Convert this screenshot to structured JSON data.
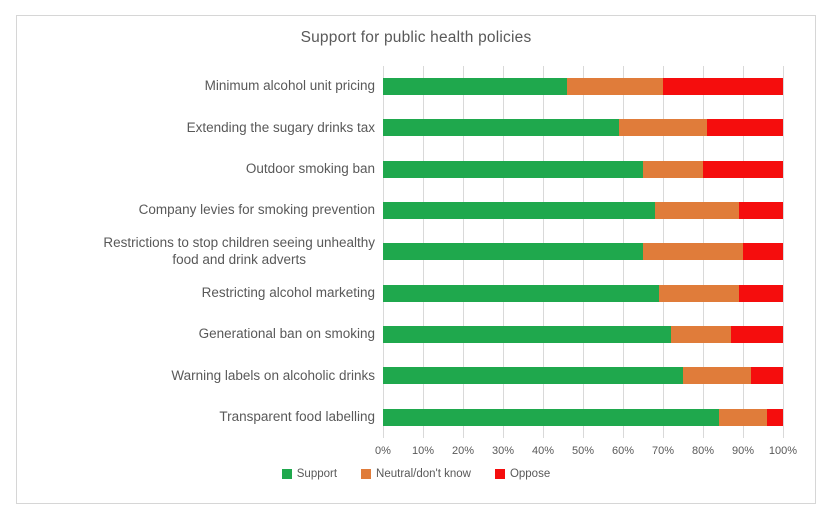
{
  "chart_data": {
    "type": "bar",
    "orientation": "horizontal",
    "stacked": true,
    "stack_total": 100,
    "title": "Support for public health policies",
    "categories": [
      "Minimum alcohol unit pricing",
      "Extending the sugary drinks tax",
      "Outdoor smoking ban",
      "Company levies for smoking prevention",
      "Restrictions to stop children seeing unhealthy\nfood and drink adverts",
      "Restricting alcohol marketing",
      "Generational ban on smoking",
      "Warning labels on alcoholic drinks",
      "Transparent food labelling"
    ],
    "series": [
      {
        "name": "Support",
        "color": "#1fa84d",
        "values": [
          46,
          59,
          65,
          68,
          65,
          69,
          72,
          75,
          84
        ]
      },
      {
        "name": "Neutral/don't know",
        "color": "#e07c3a",
        "values": [
          24,
          22,
          15,
          21,
          25,
          20,
          15,
          17,
          12
        ]
      },
      {
        "name": "Oppose",
        "color": "#f50d0d",
        "values": [
          30,
          19,
          20,
          11,
          10,
          11,
          13,
          8,
          4
        ]
      }
    ],
    "xlim": [
      0,
      100
    ],
    "x_ticks": [
      "0%",
      "10%",
      "20%",
      "30%",
      "40%",
      "50%",
      "60%",
      "70%",
      "80%",
      "90%",
      "100%"
    ],
    "grid": true,
    "gridline_color": "#d9d9d9",
    "legend_position": "bottom"
  },
  "style": {
    "text_color": "#595959",
    "frame_border_color": "#d6d6d6",
    "background": "#ffffff"
  }
}
